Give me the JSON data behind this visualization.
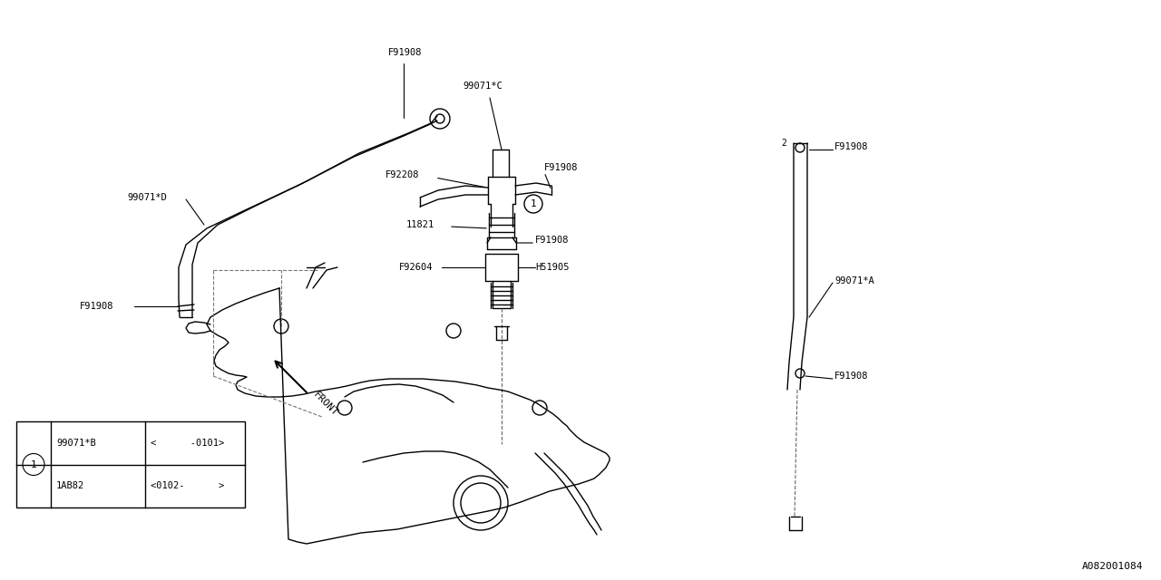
{
  "bg_color": "#ffffff",
  "line_color": "#000000",
  "diagram_id": "A082001084",
  "fig_w": 12.8,
  "fig_h": 6.4,
  "dpi": 100,
  "font_size_label": 7.5,
  "font_size_table": 7.5,
  "table": {
    "row1_col1": "99071*B",
    "row1_col2": "<      -0101>",
    "row2_col1": "1AB82",
    "row2_col2": "<0102-      >"
  }
}
